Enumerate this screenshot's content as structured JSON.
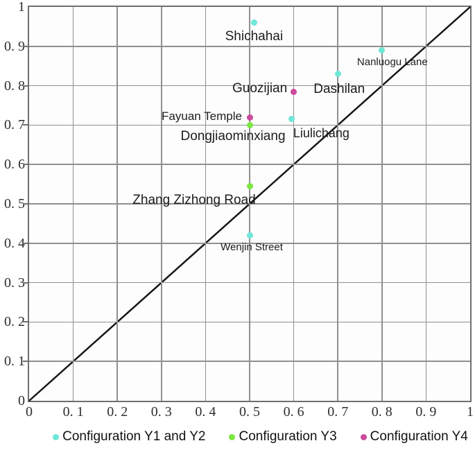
{
  "chart_data": {
    "type": "scatter",
    "title": "",
    "xlabel": "",
    "ylabel": "",
    "xlim": [
      0,
      1
    ],
    "ylim": [
      0,
      1
    ],
    "grid": true,
    "legend_position": "bottom",
    "axis_color": "#6f6f6f",
    "grid_color": "#8f8f8f",
    "x_ticks": {
      "values": [
        0,
        0.1,
        0.2,
        0.3,
        0.4,
        0.5,
        0.6,
        0.7,
        0.8,
        0.9,
        1
      ],
      "labels": [
        "0",
        "0. 1",
        "0. 2",
        "0. 3",
        "0. 4",
        "0. 5",
        "0. 6",
        "0. 7",
        "0. 8",
        "0. 9",
        "1"
      ]
    },
    "y_ticks": {
      "values": [
        0,
        0.1,
        0.2,
        0.3,
        0.4,
        0.5,
        0.6,
        0.7,
        0.8,
        0.9,
        1
      ],
      "labels": [
        "0",
        "0. 1",
        "0. 2",
        "0. 3",
        "0. 4",
        "0. 5",
        "0. 6",
        "0. 7",
        "0. 8",
        "0. 9",
        "1"
      ]
    },
    "reference_line": {
      "from": [
        0,
        0
      ],
      "to": [
        1,
        1
      ],
      "color": "#161616"
    },
    "series": [
      {
        "name": "Configuration Y1 and Y2",
        "color": "#6EE7D8",
        "points": [
          {
            "name": "Shichahai",
            "x": 0.51,
            "y": 0.96,
            "label_dx": 0,
            "label_dy": 10,
            "label_size": 19
          },
          {
            "name": "Nanluogu Lane",
            "x": 0.8,
            "y": 0.89,
            "label_dx": 15,
            "label_dy": 10,
            "label_size": 15
          },
          {
            "name": "Dashilan",
            "x": 0.7,
            "y": 0.83,
            "label_dx": 2,
            "label_dy": 12,
            "label_size": 19
          },
          {
            "name": "Liulichang",
            "x": 0.595,
            "y": 0.715,
            "label_dx": 43,
            "label_dy": 11,
            "label_size": 18
          },
          {
            "name": "Wenjin Street",
            "x": 0.5,
            "y": 0.42,
            "label_dx": 3,
            "label_dy": 10,
            "label_size": 15
          }
        ]
      },
      {
        "name": "Configuration Y3",
        "color": "#7BE73F",
        "points": [
          {
            "name": "Dongjiaominxiang",
            "x": 0.5,
            "y": 0.7,
            "label_dx": -24,
            "label_dy": 7,
            "label_size": 19
          },
          {
            "name": "Zhang Zizhong Road",
            "x": 0.5,
            "y": 0.545,
            "label_dx": -80,
            "label_dy": 11,
            "label_size": 19
          }
        ]
      },
      {
        "name": "Configuration Y4",
        "color": "#CB4B9C",
        "points": [
          {
            "name": "Guozijian",
            "x": 0.6,
            "y": 0.785,
            "label_dx": -49,
            "label_dy": -14,
            "label_size": 19
          },
          {
            "name": "Fayuan Temple",
            "x": 0.5,
            "y": 0.72,
            "label_dx": -69,
            "label_dy": -10,
            "label_size": 17
          }
        ]
      }
    ]
  }
}
